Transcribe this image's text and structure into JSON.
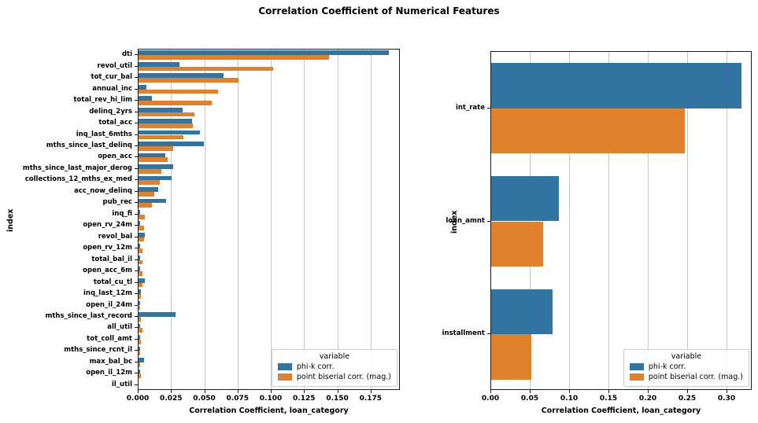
{
  "title": "Correlation Coefficient of Numerical Features",
  "colors": {
    "phi_k": "#3274a1",
    "point_biserial": "#e1812c",
    "grid": "#c9c9c9",
    "spine": "#1a1a1a"
  },
  "legend": {
    "title": "variable",
    "items": [
      {
        "label": "phi-k corr.",
        "color": "#3274a1"
      },
      {
        "label": "point biserial corr. (mag.)",
        "color": "#e1812c"
      }
    ]
  },
  "chart_data": [
    {
      "type": "bar",
      "orientation": "horizontal",
      "title": "",
      "xlabel": "Correlation Coefficient, loan_category",
      "ylabel": "index",
      "xlim": [
        0,
        0.197
      ],
      "grid": true,
      "legend_position": "lower right",
      "xticks": [
        {
          "value": 0.0,
          "label": "0.000"
        },
        {
          "value": 0.025,
          "label": "0.025"
        },
        {
          "value": 0.05,
          "label": "0.050"
        },
        {
          "value": 0.075,
          "label": "0.075"
        },
        {
          "value": 0.1,
          "label": "0.100"
        },
        {
          "value": 0.125,
          "label": "0.125"
        },
        {
          "value": 0.15,
          "label": "0.150"
        },
        {
          "value": 0.175,
          "label": "0.175"
        }
      ],
      "categories": [
        "dti",
        "revol_util",
        "tot_cur_bal",
        "annual_inc",
        "total_rev_hi_lim",
        "delinq_2yrs",
        "total_acc",
        "inq_last_6mths",
        "mths_since_last_delinq",
        "open_acc",
        "mths_since_last_major_derog",
        "collections_12_mths_ex_med",
        "acc_now_delinq",
        "pub_rec",
        "inq_fi",
        "open_rv_24m",
        "revol_bal",
        "open_rv_12m",
        "total_bal_il",
        "open_acc_6m",
        "total_cu_tl",
        "inq_last_12m",
        "open_il_24m",
        "mths_since_last_record",
        "all_util",
        "tot_coll_amt",
        "mths_since_rcnt_il",
        "max_bal_bc",
        "open_il_12m",
        "il_util"
      ],
      "series": [
        {
          "name": "phi-k corr.",
          "color": "#3274a1",
          "values": [
            0.188,
            0.031,
            0.064,
            0.006,
            0.01,
            0.033,
            0.04,
            0.046,
            0.049,
            0.02,
            0.026,
            0.025,
            0.015,
            0.021,
            0.001,
            0.001,
            0.005,
            0.001,
            0.001,
            0.001,
            0.005,
            0.002,
            0.001,
            0.028,
            0.001,
            0.001,
            0.001,
            0.004,
            0.001,
            0.0
          ]
        },
        {
          "name": "point biserial corr. (mag.)",
          "color": "#e1812c",
          "values": [
            0.143,
            0.101,
            0.075,
            0.06,
            0.055,
            0.042,
            0.041,
            0.034,
            0.026,
            0.022,
            0.017,
            0.016,
            0.012,
            0.01,
            0.005,
            0.004,
            0.004,
            0.003,
            0.003,
            0.003,
            0.003,
            0.002,
            0.001,
            0.002,
            0.003,
            0.002,
            0.001,
            0.001,
            0.002,
            0.0
          ]
        }
      ]
    },
    {
      "type": "bar",
      "orientation": "horizontal",
      "title": "",
      "xlabel": "Correlation Coefficient, loan_category",
      "ylabel": "index",
      "xlim": [
        0,
        0.332
      ],
      "grid": true,
      "legend_position": "lower right",
      "xticks": [
        {
          "value": 0.0,
          "label": "0.00"
        },
        {
          "value": 0.05,
          "label": "0.05"
        },
        {
          "value": 0.1,
          "label": "0.10"
        },
        {
          "value": 0.15,
          "label": "0.15"
        },
        {
          "value": 0.2,
          "label": "0.20"
        },
        {
          "value": 0.25,
          "label": "0.25"
        },
        {
          "value": 0.3,
          "label": "0.30"
        }
      ],
      "categories": [
        "int_rate",
        "loan_amnt",
        "installment"
      ],
      "series": [
        {
          "name": "phi-k corr.",
          "color": "#3274a1",
          "values": [
            0.318,
            0.086,
            0.078
          ]
        },
        {
          "name": "point biserial corr. (mag.)",
          "color": "#e1812c",
          "values": [
            0.246,
            0.066,
            0.051
          ]
        }
      ]
    }
  ]
}
